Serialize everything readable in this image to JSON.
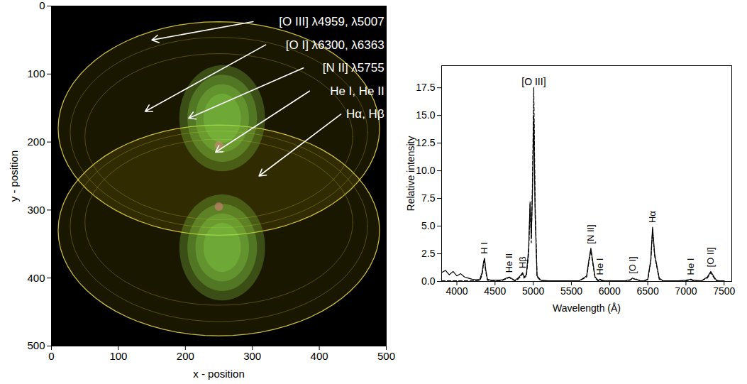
{
  "chart_data": [
    {
      "type": "image",
      "xlabel": "x - position",
      "ylabel": "y - position",
      "xlim": [
        0,
        500
      ],
      "ylim": [
        0,
        500
      ],
      "xticks": [
        0,
        100,
        200,
        300,
        400,
        500
      ],
      "yticks": [
        0,
        100,
        200,
        300,
        400,
        500
      ],
      "annotations": [
        "[O III] λ4959, λ5007",
        "[O I] λ6300, λ6363",
        "[N II] λ5755",
        "He I, He II",
        "Hα, Hβ"
      ]
    },
    {
      "type": "line",
      "xlabel": "Wavelength (Å)",
      "ylabel": "Relative intensity",
      "xlim": [
        3800,
        7600
      ],
      "ylim": [
        0,
        19.5
      ],
      "xticks": [
        4000,
        4500,
        5000,
        5500,
        6000,
        6500,
        7000,
        7500
      ],
      "yticks": [
        {
          "value": 0,
          "label": "0.0"
        },
        2.5,
        {
          "value": 5,
          "label": "5.0"
        },
        7.5,
        {
          "value": 10,
          "label": "10.0"
        },
        12.5,
        {
          "value": 15,
          "label": "15.0"
        },
        17.5
      ],
      "x": [
        3800,
        3850,
        3900,
        3950,
        4000,
        4050,
        4100,
        4150,
        4200,
        4250,
        4300,
        4330,
        4350,
        4363,
        4375,
        4400,
        4450,
        4500,
        4550,
        4600,
        4650,
        4686,
        4720,
        4760,
        4800,
        4840,
        4861,
        4880,
        4910,
        4940,
        4959,
        4975,
        4990,
        5007,
        5025,
        5050,
        5100,
        5200,
        5300,
        5400,
        5500,
        5600,
        5700,
        5730,
        5755,
        5780,
        5810,
        5850,
        5876,
        5900,
        5950,
        6000,
        6100,
        6200,
        6270,
        6300,
        6330,
        6363,
        6400,
        6450,
        6500,
        6540,
        6563,
        6590,
        6650,
        6700,
        6800,
        6900,
        7000,
        7065,
        7100,
        7200,
        7280,
        7325,
        7370,
        7400,
        7450,
        7500
      ],
      "series": [
        {
          "color": "#000000",
          "line_style": "solid",
          "values": [
            0.8,
            1.0,
            0.6,
            0.9,
            0.5,
            0.7,
            0.4,
            0.3,
            0.2,
            0.15,
            0.2,
            0.8,
            1.8,
            2.1,
            1.2,
            0.2,
            0.1,
            0.1,
            0.1,
            0.15,
            0.3,
            0.4,
            0.25,
            0.1,
            0.3,
            0.6,
            0.8,
            0.4,
            0.6,
            3.0,
            7.2,
            4.0,
            8.0,
            15.0,
            6.0,
            0.5,
            0.1,
            0.05,
            0.05,
            0.05,
            0.05,
            0.05,
            0.5,
            2.0,
            3.0,
            1.8,
            0.4,
            0.1,
            0.2,
            0.1,
            0.05,
            0.05,
            0.05,
            0.05,
            0.15,
            0.3,
            0.2,
            0.15,
            0.05,
            0.05,
            0.2,
            2.0,
            4.9,
            2.5,
            0.3,
            0.05,
            0.05,
            0.05,
            0.1,
            0.2,
            0.1,
            0.05,
            0.4,
            0.9,
            0.4,
            0.1,
            0.05,
            0.05
          ]
        },
        {
          "color": "#000000",
          "line_style": "dashed",
          "values": [
            0.05,
            0.05,
            0.05,
            0.05,
            0.05,
            0.05,
            0.05,
            0.05,
            0.05,
            0.05,
            0.05,
            0.6,
            1.6,
            2.0,
            1.0,
            0.1,
            0.05,
            0.05,
            0.05,
            0.1,
            0.25,
            0.35,
            0.2,
            0.05,
            0.2,
            0.5,
            0.7,
            0.3,
            0.5,
            2.5,
            7.0,
            3.5,
            9.0,
            17.5,
            7.0,
            0.4,
            0.05,
            0.05,
            0.05,
            0.05,
            0.05,
            0.05,
            0.4,
            1.8,
            2.8,
            1.6,
            0.3,
            0.05,
            0.15,
            0.05,
            0.05,
            0.05,
            0.05,
            0.05,
            0.1,
            0.3,
            0.2,
            0.2,
            0.05,
            0.05,
            0.15,
            1.8,
            4.7,
            2.3,
            0.2,
            0.05,
            0.05,
            0.05,
            0.05,
            0.15,
            0.05,
            0.05,
            0.3,
            0.8,
            0.3,
            0.05,
            0.05,
            0.05
          ]
        }
      ],
      "annotations": [
        {
          "text": "H I",
          "x": 4363
        },
        {
          "text": "He II",
          "x": 4686
        },
        {
          "text": "Hβ",
          "x": 4861
        },
        {
          "text": "[O III]",
          "x": 5007
        },
        {
          "text": "[N II]",
          "x": 5755
        },
        {
          "text": "He I",
          "x": 5876
        },
        {
          "text": "[O I]",
          "x": 6300
        },
        {
          "text": "Hα",
          "x": 6563
        },
        {
          "text": "He I",
          "x": 7065
        },
        {
          "text": "[O II]",
          "x": 7325
        }
      ]
    }
  ]
}
